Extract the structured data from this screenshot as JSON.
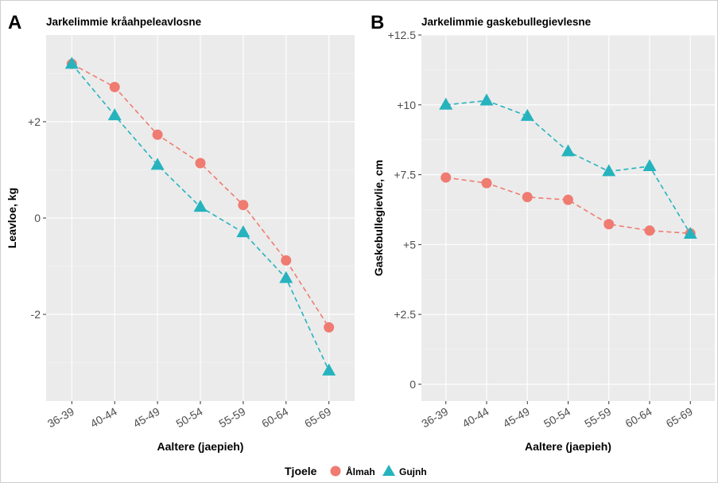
{
  "colors": {
    "series_female": "#EF7B71",
    "series_male": "#26B3BE",
    "panel_bg": "#EBEBEB",
    "grid_major": "#FFFFFF",
    "text_main": "#000000",
    "text_axis": "#4D4D4D",
    "frame": "#CFCFCF"
  },
  "legend": {
    "title": "Tjoele",
    "items": [
      {
        "label": "Ålmah",
        "color": "#EF7B71",
        "shape": "circle"
      },
      {
        "label": "Gujnh",
        "color": "#26B3BE",
        "shape": "triangle"
      }
    ]
  },
  "chart_data": [
    {
      "panel_label": "A",
      "type": "line",
      "title": "Jarkelimmie kråahpeleavlosne",
      "xlabel": "Aaltere (jaepieh)",
      "ylabel": "Leavloe, kg",
      "categories": [
        "36-39",
        "40-44",
        "45-49",
        "50-54",
        "55-59",
        "60-64",
        "65-69"
      ],
      "ylim": [
        -3.8,
        3.8
      ],
      "yticks": [
        -2,
        0,
        2
      ],
      "ytick_labels": [
        "-2",
        "0",
        "+2"
      ],
      "grid": true,
      "legend_position": "bottom",
      "series": [
        {
          "name": "Ålmah",
          "marker": "circle",
          "values": [
            3.2,
            2.72,
            1.73,
            1.14,
            0.27,
            -0.88,
            -2.27
          ]
        },
        {
          "name": "Gujnh",
          "marker": "triangle",
          "values": [
            3.2,
            2.13,
            1.1,
            0.23,
            -0.3,
            -1.25,
            -3.17
          ]
        }
      ]
    },
    {
      "panel_label": "B",
      "type": "line",
      "title": "Jarkelimmie gaskebullegievlesne",
      "xlabel": "Aaltere (jaepieh)",
      "ylabel": "Gaskebullegievlie, cm",
      "categories": [
        "36-39",
        "40-44",
        "45-49",
        "50-54",
        "55-59",
        "60-64",
        "65-69"
      ],
      "ylim": [
        -0.6,
        12.5
      ],
      "yticks": [
        0,
        2.5,
        5,
        7.5,
        10,
        12.5
      ],
      "ytick_labels": [
        "0",
        "+2.5",
        "+5",
        "+7.5",
        "+10",
        "+12.5"
      ],
      "grid": true,
      "legend_position": "bottom",
      "series": [
        {
          "name": "Ålmah",
          "marker": "circle",
          "values": [
            7.4,
            7.2,
            6.7,
            6.6,
            5.73,
            5.5,
            5.4
          ]
        },
        {
          "name": "Gujnh",
          "marker": "triangle",
          "values": [
            10.0,
            10.15,
            9.6,
            8.33,
            7.62,
            7.8,
            5.38
          ]
        }
      ]
    }
  ]
}
